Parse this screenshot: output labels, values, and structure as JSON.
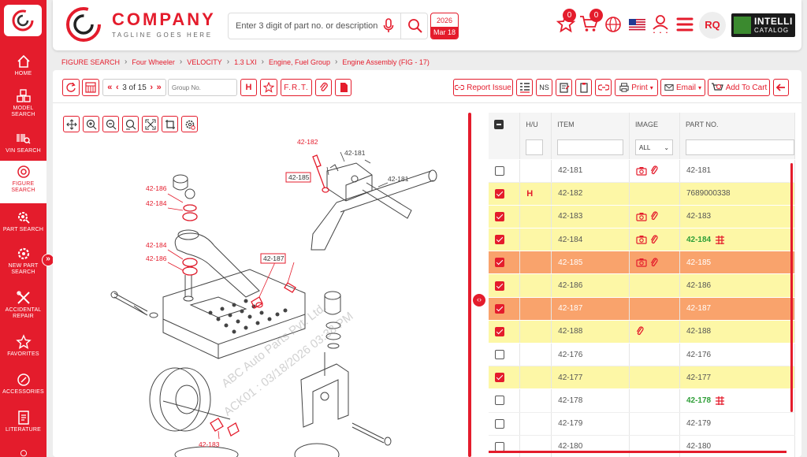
{
  "sidebar": {
    "items": [
      {
        "label": "HOME",
        "icon": "home-icon"
      },
      {
        "label": "MODEL SEARCH",
        "icon": "cubes-icon"
      },
      {
        "label": "VIN SEARCH",
        "icon": "barcode-search-icon"
      },
      {
        "label": "FIGURE SEARCH",
        "icon": "figure-search-icon"
      },
      {
        "label": "PART SEARCH",
        "icon": "gear-search-icon"
      },
      {
        "label": "NEW PART SEARCH",
        "icon": "new-gear-icon"
      },
      {
        "label": "ACCIDENTAL REPAIR",
        "icon": "tools-icon"
      },
      {
        "label": "FAVORITES",
        "icon": "star-icon"
      },
      {
        "label": "ACCESSORIES",
        "icon": "accessories-icon"
      },
      {
        "label": "LITERATURE",
        "icon": "document-icon"
      }
    ]
  },
  "header": {
    "brand_name": "COMPANY",
    "brand_tagline": "TAGLINE GOES HERE",
    "search_placeholder": "Enter 3 digit of part no. or description",
    "calendar_year": "2026",
    "calendar_date": "Mar 18",
    "favorites_count": "0",
    "cart_count": "0",
    "user_initials": "RQ",
    "intelli_title": "INTELLI",
    "intelli_sub": "CATALOG"
  },
  "breadcrumb": [
    "FIGURE SEARCH",
    "Four Wheeler",
    "VELOCITY",
    "1.3 LXI",
    "Engine, Fuel Group",
    "Engine Assembly (FIG - 17)"
  ],
  "toolbar": {
    "page_info": "3 of 15",
    "group_placeholder": "Group No.",
    "h_label": "H",
    "frt_label": "F.R.T.",
    "report_issue": "Report Issue",
    "ns_label": "NS",
    "print_label": "Print",
    "email_label": "Email",
    "add_to_cart": "Add To Cart"
  },
  "figure": {
    "callouts": [
      "42-182",
      "42-181",
      "42-185",
      "42-181",
      "42-186",
      "42-184",
      "42-187",
      "42-184",
      "42-186",
      "42-183"
    ],
    "watermark_line1": "ABC Auto Parts Pvt. Ltd.",
    "watermark_line2": "ACK01 : 03/18/2026 03:38 PM"
  },
  "table": {
    "headers": [
      "H/U",
      "ITEM",
      "IMAGE",
      "PART NO."
    ],
    "image_filter": "ALL",
    "rows": [
      {
        "checked": false,
        "hu": "",
        "item": "42-181",
        "camera": true,
        "clip": true,
        "part": "42-181",
        "green": false,
        "state": "row"
      },
      {
        "checked": true,
        "hu": "H",
        "item": "42-182",
        "camera": false,
        "clip": false,
        "part": "7689000338",
        "green": false,
        "state": "sel"
      },
      {
        "checked": true,
        "hu": "",
        "item": "42-183",
        "camera": true,
        "clip": true,
        "part": "42-183",
        "green": false,
        "state": "sel"
      },
      {
        "checked": true,
        "hu": "",
        "item": "42-184",
        "camera": true,
        "clip": true,
        "part": "42-184",
        "green": true,
        "state": "sel"
      },
      {
        "checked": true,
        "hu": "",
        "item": "42-185",
        "camera": true,
        "clip": true,
        "part": "42-185",
        "green": false,
        "state": "hl"
      },
      {
        "checked": true,
        "hu": "",
        "item": "42-186",
        "camera": false,
        "clip": false,
        "part": "42-186",
        "green": false,
        "state": "sel"
      },
      {
        "checked": true,
        "hu": "",
        "item": "42-187",
        "camera": false,
        "clip": false,
        "part": "42-187",
        "green": false,
        "state": "hl"
      },
      {
        "checked": true,
        "hu": "",
        "item": "42-188",
        "camera": false,
        "clip": true,
        "part": "42-188",
        "green": false,
        "state": "sel"
      },
      {
        "checked": false,
        "hu": "",
        "item": "42-176",
        "camera": false,
        "clip": false,
        "part": "42-176",
        "green": false,
        "state": "row"
      },
      {
        "checked": true,
        "hu": "",
        "item": "42-177",
        "camera": false,
        "clip": false,
        "part": "42-177",
        "green": false,
        "state": "sel"
      },
      {
        "checked": false,
        "hu": "",
        "item": "42-178",
        "camera": false,
        "clip": false,
        "part": "42-178",
        "green": true,
        "state": "row"
      },
      {
        "checked": false,
        "hu": "",
        "item": "42-179",
        "camera": false,
        "clip": false,
        "part": "42-179",
        "green": false,
        "state": "row"
      },
      {
        "checked": false,
        "hu": "",
        "item": "42-180",
        "camera": false,
        "clip": false,
        "part": "42-180",
        "green": false,
        "state": "row"
      }
    ]
  },
  "colors": {
    "accent": "#e41c2c",
    "selected_row": "#fdf7a6",
    "highlight_row": "#f9a36c",
    "green_part": "#2e9e37"
  }
}
